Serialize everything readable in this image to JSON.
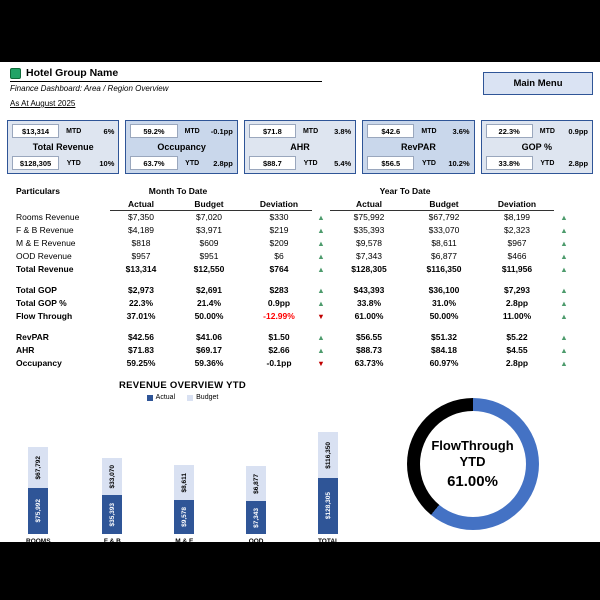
{
  "colors": {
    "navy": "#2F5597",
    "card_bg": "#DEE5F0",
    "card_bg_highlight": "#C9D7EB",
    "bar_actual": "#2F5597",
    "bar_budget": "#D9E1F2",
    "arrow_up_green": "#4D9B6C",
    "arrow_down_red": "#C00000",
    "negative_text": "#FF0000",
    "donut_arc": "#4472C4",
    "donut_ring": "#000000"
  },
  "header": {
    "company": "Hotel Group Name",
    "subtitle": "Finance Dashboard: Area / Region Overview",
    "as_at": "As At August 2025",
    "main_menu_label": "Main Menu"
  },
  "kpi_cards": [
    {
      "title": "Total Revenue",
      "mtd_value": "$13,314",
      "mtd_label": "MTD",
      "mtd_dev": "6%",
      "ytd_value": "$128,305",
      "ytd_label": "YTD",
      "ytd_dev": "10%"
    },
    {
      "title": "Occupancy",
      "highlight": true,
      "mtd_value": "59.2%",
      "mtd_label": "MTD",
      "mtd_dev": "-0.1pp",
      "ytd_value": "63.7%",
      "ytd_label": "YTD",
      "ytd_dev": "2.8pp"
    },
    {
      "title": "AHR",
      "mtd_value": "$71.8",
      "mtd_label": "MTD",
      "mtd_dev": "3.8%",
      "ytd_value": "$88.7",
      "ytd_label": "YTD",
      "ytd_dev": "5.4%"
    },
    {
      "title": "RevPAR",
      "highlight": true,
      "mtd_value": "$42.6",
      "mtd_label": "MTD",
      "mtd_dev": "3.6%",
      "ytd_value": "$56.5",
      "ytd_label": "YTD",
      "ytd_dev": "10.2%"
    },
    {
      "title": "GOP %",
      "mtd_value": "22.3%",
      "mtd_label": "MTD",
      "mtd_dev": "0.9pp",
      "ytd_value": "33.8%",
      "ytd_label": "YTD",
      "ytd_dev": "2.8pp"
    }
  ],
  "table": {
    "col_particulars": "Particulars",
    "group_mtd": "Month To Date",
    "group_ytd": "Year To Date",
    "col_actual": "Actual",
    "col_budget": "Budget",
    "col_deviation": "Deviation",
    "rows": [
      {
        "name": "Rooms Revenue",
        "mtd_actual": "$7,350",
        "mtd_budget": "$7,020",
        "mtd_dev": "$330",
        "mtd_dir": "up",
        "ytd_actual": "$75,992",
        "ytd_budget": "$67,792",
        "ytd_dev": "$8,199",
        "ytd_dir": "up"
      },
      {
        "name": "F & B Revenue",
        "mtd_actual": "$4,189",
        "mtd_budget": "$3,971",
        "mtd_dev": "$219",
        "mtd_dir": "up",
        "ytd_actual": "$35,393",
        "ytd_budget": "$33,070",
        "ytd_dev": "$2,323",
        "ytd_dir": "up"
      },
      {
        "name": "M & E Revenue",
        "mtd_actual": "$818",
        "mtd_budget": "$609",
        "mtd_dev": "$209",
        "mtd_dir": "up",
        "ytd_actual": "$9,578",
        "ytd_budget": "$8,611",
        "ytd_dev": "$967",
        "ytd_dir": "up"
      },
      {
        "name": "OOD Revenue",
        "mtd_actual": "$957",
        "mtd_budget": "$951",
        "mtd_dev": "$6",
        "mtd_dir": "up",
        "ytd_actual": "$7,343",
        "ytd_budget": "$6,877",
        "ytd_dev": "$466",
        "ytd_dir": "up"
      },
      {
        "name": "Total Revenue",
        "bold": true,
        "mtd_actual": "$13,314",
        "mtd_budget": "$12,550",
        "mtd_dev": "$764",
        "mtd_dir": "up",
        "ytd_actual": "$128,305",
        "ytd_budget": "$116,350",
        "ytd_dev": "$11,956",
        "ytd_dir": "up"
      },
      {
        "spacer": true
      },
      {
        "name": "Total GOP",
        "bold": true,
        "mtd_actual": "$2,973",
        "mtd_budget": "$2,691",
        "mtd_dev": "$283",
        "mtd_dir": "up",
        "ytd_actual": "$43,393",
        "ytd_budget": "$36,100",
        "ytd_dev": "$7,293",
        "ytd_dir": "up"
      },
      {
        "name": "Total GOP %",
        "bold": true,
        "mtd_actual": "22.3%",
        "mtd_budget": "21.4%",
        "mtd_dev": "0.9pp",
        "mtd_dir": "up",
        "ytd_actual": "33.8%",
        "ytd_budget": "31.0%",
        "ytd_dev": "2.8pp",
        "ytd_dir": "up"
      },
      {
        "name": "Flow Through",
        "bold": true,
        "mtd_actual": "37.01%",
        "mtd_budget": "50.00%",
        "mtd_dev": "-12.99%",
        "mtd_dev_neg": true,
        "mtd_dir": "down",
        "ytd_actual": "61.00%",
        "ytd_budget": "50.00%",
        "ytd_dev": "11.00%",
        "ytd_dir": "up"
      },
      {
        "spacer": true
      },
      {
        "name": "RevPAR",
        "bold": true,
        "mtd_actual": "$42.56",
        "mtd_budget": "$41.06",
        "mtd_dev": "$1.50",
        "mtd_dir": "up",
        "ytd_actual": "$56.55",
        "ytd_budget": "$51.32",
        "ytd_dev": "$5.22",
        "ytd_dir": "up"
      },
      {
        "name": "AHR",
        "bold": true,
        "mtd_actual": "$71.83",
        "mtd_budget": "$69.17",
        "mtd_dev": "$2.66",
        "mtd_dir": "up",
        "ytd_actual": "$88.73",
        "ytd_budget": "$84.18",
        "ytd_dev": "$4.55",
        "ytd_dir": "up"
      },
      {
        "name": "Occupancy",
        "bold": true,
        "mtd_actual": "59.25%",
        "mtd_budget": "59.36%",
        "mtd_dev": "-0.1pp",
        "mtd_dir": "down",
        "ytd_actual": "63.73%",
        "ytd_budget": "60.97%",
        "ytd_dev": "2.8pp",
        "ytd_dir": "up"
      }
    ]
  },
  "chart_data": {
    "type": "bar",
    "title": "REVENUE OVERVIEW YTD",
    "categories": [
      "ROOMS",
      "F & B",
      "M & E",
      "OOD",
      "TOTAL"
    ],
    "series": [
      {
        "name": "Actual",
        "color": "#2F5597",
        "values": [
          75992,
          35393,
          9578,
          7343,
          128305
        ],
        "labels": [
          "$75,992",
          "$35,393",
          "$9,578",
          "$7,343",
          "$128,305"
        ]
      },
      {
        "name": "Budget",
        "color": "#D9E1F2",
        "values": [
          67792,
          33070,
          8611,
          6877,
          116350
        ],
        "labels": [
          "$67,792",
          "$33,070",
          "$8,611",
          "$6,877",
          "$116,350"
        ]
      }
    ],
    "xlabel": "",
    "ylabel": "",
    "legend_position": "top",
    "grid": false
  },
  "donut": {
    "title_line1": "FlowThrough",
    "title_line2": "YTD",
    "value_label": "61.00%",
    "percent": 61
  }
}
